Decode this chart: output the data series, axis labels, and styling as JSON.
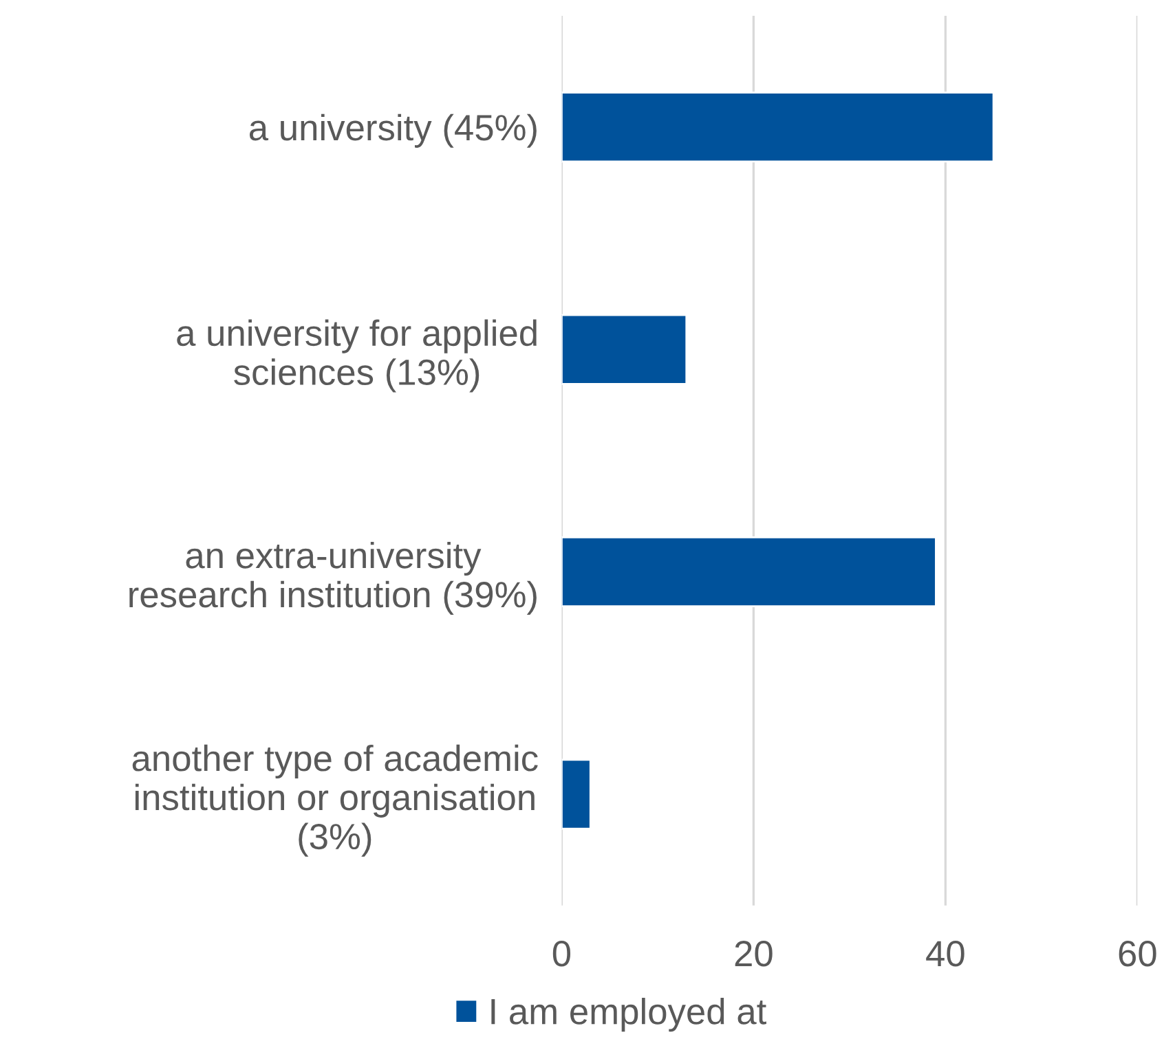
{
  "chart_data": {
    "type": "bar",
    "orientation": "horizontal",
    "categories": [
      "a university (45%)",
      "a university for applied\nsciences (13%)",
      "an extra-university\nresearch institution (39%)",
      "another type of academic\ninstitution or organisation\n(3%)"
    ],
    "series": [
      {
        "name": "I am employed at",
        "color": "#00529b",
        "values": [
          45,
          13,
          39,
          3
        ]
      }
    ],
    "xlim": [
      0,
      60
    ],
    "xticks": [
      0,
      20,
      40,
      60
    ],
    "grid": "x",
    "legend": "bottom"
  }
}
